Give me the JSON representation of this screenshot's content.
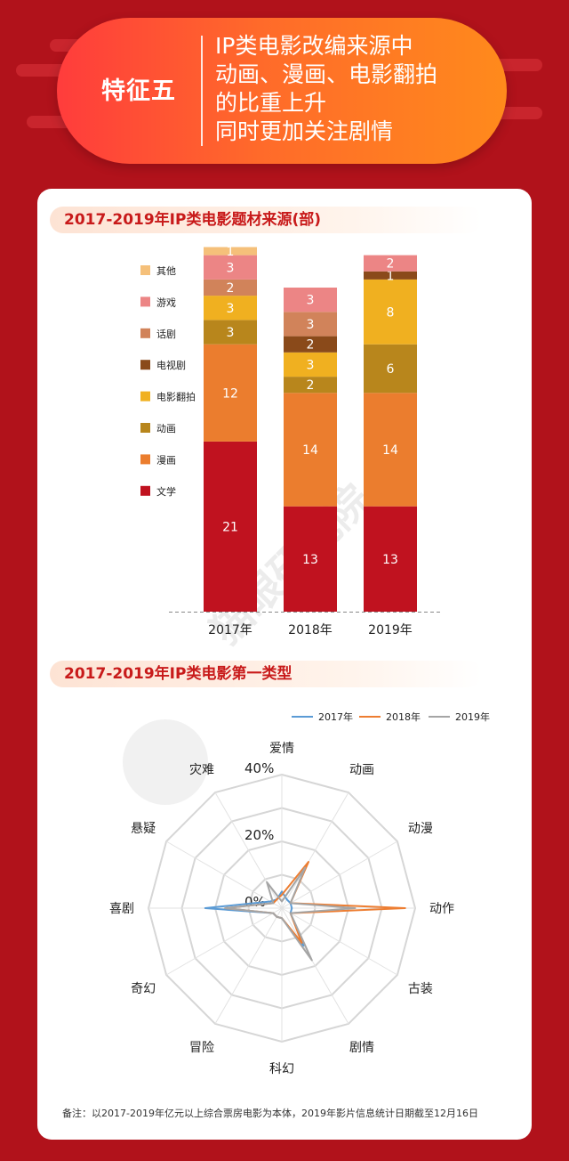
{
  "header": {
    "tag": "特征五",
    "lines": [
      "IP类电影改编来源中",
      "动画、漫画、电影翻拍",
      "的比重上升",
      "同时更加关注剧情"
    ]
  },
  "watermark": "猫眼研究院",
  "note": "备注：以2017-2019年亿元以上综合票房电影为本体，2019年影片信息统计日期截至12月16日",
  "chart_data": [
    {
      "type": "bar",
      "title": "2017-2019年IP类电影题材来源(部)",
      "stacked": true,
      "categories": [
        "2017年",
        "2018年",
        "2019年"
      ],
      "series": [
        {
          "name": "文学",
          "color": "#c0121f",
          "values": [
            21,
            13,
            13
          ]
        },
        {
          "name": "漫画",
          "color": "#eb7d2e",
          "values": [
            12,
            14,
            14
          ]
        },
        {
          "name": "动画",
          "color": "#b8861c",
          "values": [
            3,
            2,
            6
          ]
        },
        {
          "name": "电影翻拍",
          "color": "#f0b020",
          "values": [
            3,
            3,
            8
          ]
        },
        {
          "name": "电视剧",
          "color": "#8a4a1a",
          "values": [
            0,
            2,
            1
          ]
        },
        {
          "name": "话剧",
          "color": "#d1835a",
          "values": [
            2,
            3,
            0
          ]
        },
        {
          "name": "游戏",
          "color": "#ec8585",
          "values": [
            3,
            3,
            2
          ]
        },
        {
          "name": "其他",
          "color": "#f5c07a",
          "values": [
            1,
            0,
            0
          ]
        }
      ],
      "legend_position": "left"
    },
    {
      "type": "radar",
      "title": "2017-2019年IP类电影第一类型",
      "categories": [
        "爱情",
        "动画",
        "动漫",
        "动作",
        "古装",
        "剧情",
        "科幻",
        "冒险",
        "奇幻",
        "喜剧",
        "悬疑",
        "灾难"
      ],
      "axis_ticks": [
        "0%",
        "20%",
        "40%"
      ],
      "rmax": 40,
      "series": [
        {
          "name": "2017年",
          "color": "#5b9bd5",
          "values": [
            5,
            3,
            3,
            3,
            3,
            13,
            3,
            3,
            3,
            23,
            4,
            3
          ]
        },
        {
          "name": "2018年",
          "color": "#ed7d31",
          "values": [
            4,
            16,
            3,
            37,
            3,
            12,
            3,
            3,
            3,
            17,
            3,
            3
          ]
        },
        {
          "name": "2019年",
          "color": "#a5a5a5",
          "values": [
            2,
            14,
            3,
            22,
            3,
            18,
            3,
            3,
            3,
            17,
            3,
            9
          ]
        }
      ],
      "legend_position": "top-right"
    }
  ]
}
